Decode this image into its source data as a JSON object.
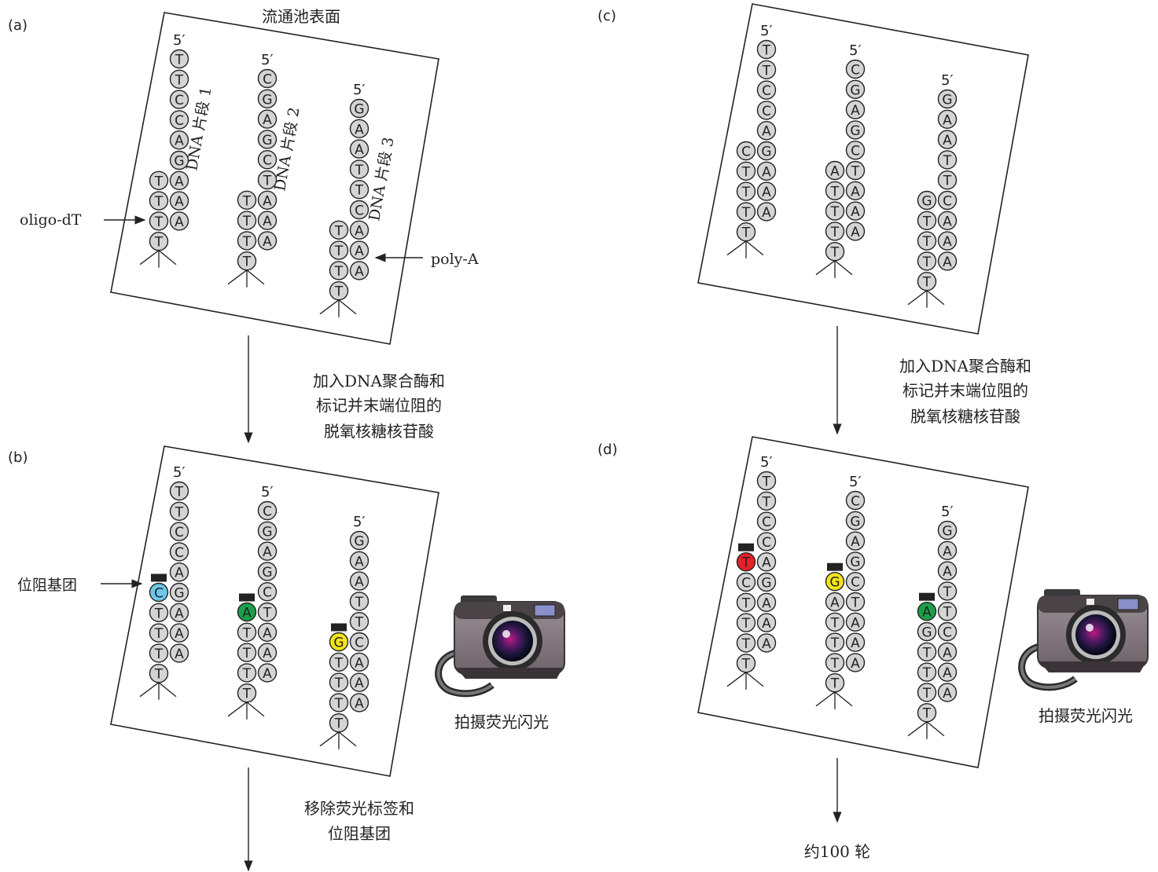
{
  "panels": {
    "a": {
      "label": "(a)",
      "title": "流通池表面",
      "strand_labels": [
        "DNA 片段 1",
        "DNA 片段 2",
        "DNA 片段 3"
      ],
      "oligo_label": "oligo-dT",
      "polyA_label": "poly-A",
      "prime5": "5′",
      "strands": [
        {
          "template": [
            "T",
            "T",
            "C",
            "C",
            "A",
            "G",
            "A",
            "A",
            "A"
          ],
          "complement": [
            "T",
            "T",
            "T",
            "T"
          ]
        },
        {
          "template": [
            "C",
            "G",
            "A",
            "G",
            "C",
            "T",
            "A",
            "A",
            "A"
          ],
          "complement": [
            "T",
            "T",
            "T",
            "T"
          ]
        },
        {
          "template": [
            "G",
            "A",
            "A",
            "T",
            "T",
            "C",
            "A",
            "A",
            "A"
          ],
          "complement": [
            "T",
            "T",
            "T",
            "T"
          ]
        }
      ]
    },
    "b": {
      "label": "(b)",
      "blocking_label": "位阻基团",
      "photo_caption": "拍摄荧光闪光",
      "prime5": "5′",
      "strands": [
        {
          "template": [
            "T",
            "T",
            "C",
            "C",
            "A",
            "G",
            "A",
            "A",
            "A"
          ],
          "complement": [
            "C",
            "T",
            "T",
            "T",
            "T"
          ],
          "added": {
            "base": "C",
            "color": "#6ec6ea"
          }
        },
        {
          "template": [
            "C",
            "G",
            "A",
            "G",
            "C",
            "T",
            "A",
            "A",
            "A"
          ],
          "complement": [
            "A",
            "T",
            "T",
            "T",
            "T"
          ],
          "added": {
            "base": "A",
            "color": "#1aa04a"
          }
        },
        {
          "template": [
            "G",
            "A",
            "A",
            "T",
            "T",
            "C",
            "A",
            "A",
            "A"
          ],
          "complement": [
            "G",
            "T",
            "T",
            "T",
            "T"
          ],
          "added": {
            "base": "G",
            "color": "#f2e51a"
          }
        }
      ]
    },
    "c": {
      "label": "(c)",
      "prime5": "5′",
      "strands": [
        {
          "template": [
            "T",
            "T",
            "C",
            "C",
            "A",
            "G",
            "A",
            "A",
            "A"
          ],
          "complement": [
            "C",
            "T",
            "T",
            "T",
            "T"
          ]
        },
        {
          "template": [
            "C",
            "G",
            "A",
            "G",
            "C",
            "T",
            "A",
            "A",
            "A"
          ],
          "complement": [
            "A",
            "T",
            "T",
            "T",
            "T"
          ]
        },
        {
          "template": [
            "G",
            "A",
            "A",
            "T",
            "T",
            "C",
            "A",
            "A",
            "A"
          ],
          "complement": [
            "G",
            "T",
            "T",
            "T",
            "T"
          ]
        }
      ]
    },
    "d": {
      "label": "(d)",
      "photo_caption": "拍摄荧光闪光",
      "prime5": "5′",
      "strands": [
        {
          "template": [
            "T",
            "T",
            "C",
            "C",
            "A",
            "G",
            "A",
            "A",
            "A"
          ],
          "complement": [
            "T",
            "C",
            "T",
            "T",
            "T",
            "T"
          ],
          "added": {
            "base": "T",
            "color": "#e8202a"
          }
        },
        {
          "template": [
            "C",
            "G",
            "A",
            "G",
            "C",
            "T",
            "A",
            "A",
            "A"
          ],
          "complement": [
            "G",
            "A",
            "T",
            "T",
            "T",
            "T"
          ],
          "added": {
            "base": "G",
            "color": "#f2e51a"
          }
        },
        {
          "template": [
            "G",
            "A",
            "A",
            "T",
            "T",
            "C",
            "A",
            "A",
            "A"
          ],
          "complement": [
            "A",
            "G",
            "T",
            "T",
            "T",
            "T"
          ],
          "added": {
            "base": "A",
            "color": "#1aa04a"
          }
        }
      ]
    }
  },
  "step_texts": {
    "ab": [
      "加入DNA聚合酶和",
      "标记并末端位阻的",
      "脱氧核糖核苷酸"
    ],
    "cd": [
      "加入DNA聚合酶和",
      "标记并末端位阻的",
      "脱氧核糖核苷酸"
    ],
    "b_next": [
      "移除荧光标签和",
      "位阻基团"
    ],
    "d_next": [
      "约100 轮"
    ]
  },
  "colors": {
    "nucleotide_fill": "#d4d4d4",
    "cytosine_label": "#6ec6ea",
    "adenine_label": "#1aa04a",
    "guanine_label": "#f2e51a",
    "thymine_label": "#e8202a",
    "block": "#222222"
  }
}
